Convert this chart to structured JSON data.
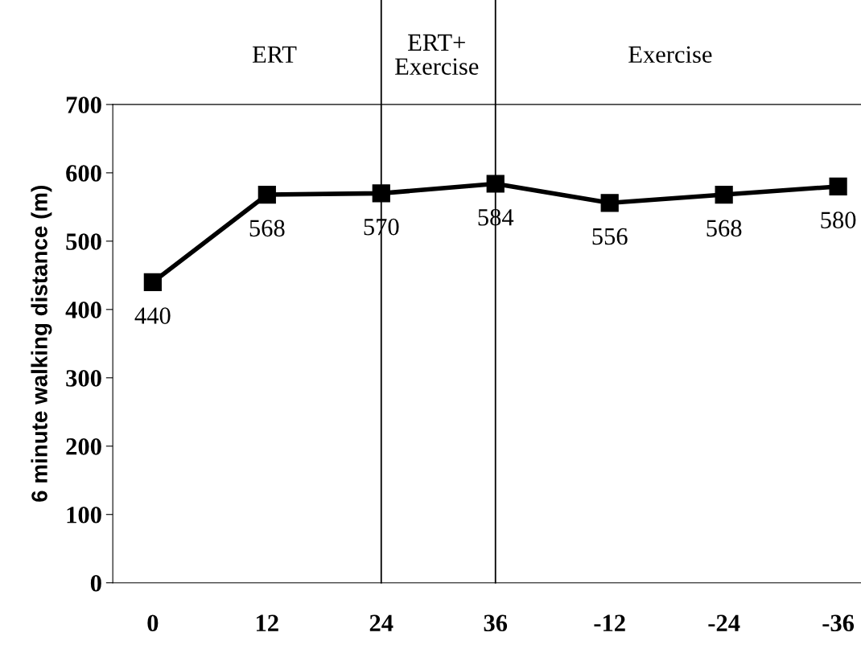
{
  "chart_data": {
    "type": "line",
    "ylabel": "6 minute walking distance (m)",
    "categories": [
      "0",
      "12",
      "24",
      "36",
      "-12",
      "-24",
      "-36"
    ],
    "series": [
      {
        "color": "#000000",
        "values": [
          440,
          568,
          570,
          584,
          556,
          568,
          580
        ]
      }
    ],
    "ylim": [
      0,
      700
    ],
    "yticks": [
      0,
      100,
      200,
      300,
      400,
      500,
      600,
      700
    ],
    "marker": "square",
    "line_style": "solid",
    "grid": false,
    "data_labels": true,
    "ref_lines": [
      {
        "axis": "x",
        "value": "24",
        "color": "#000000"
      },
      {
        "axis": "x",
        "value": "36",
        "color": "#000000"
      }
    ],
    "annotations": [
      "ERT",
      "ERT+\nExercise",
      "Exercise"
    ]
  }
}
